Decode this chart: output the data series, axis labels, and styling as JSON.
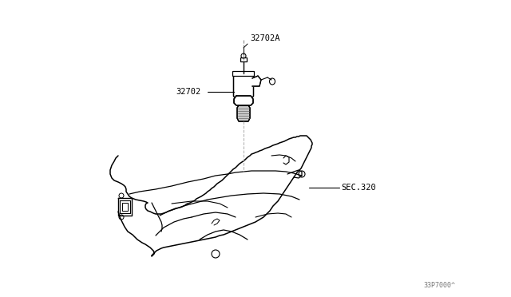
{
  "background_color": "#ffffff",
  "label_32702A": "32702A",
  "label_32702": "32702",
  "label_sec320": "SEC.320",
  "label_partnum": "33P7000^",
  "text_color": "#000000",
  "line_color": "#000000",
  "fig_width": 6.4,
  "fig_height": 3.72,
  "dpi": 100
}
